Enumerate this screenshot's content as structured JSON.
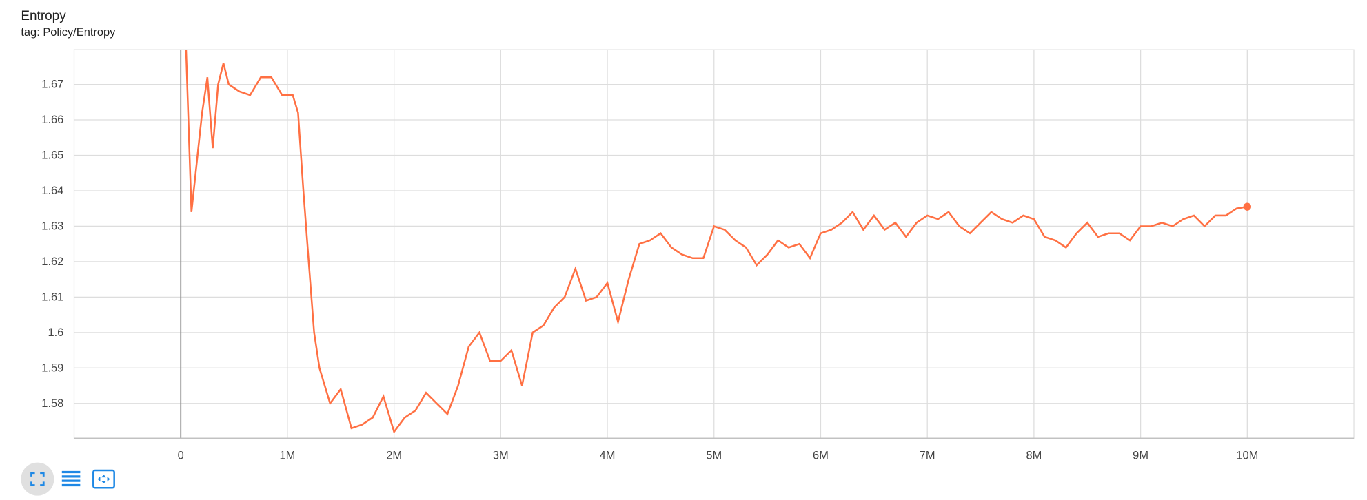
{
  "chart_data": {
    "type": "line",
    "title": "Entropy",
    "subtitle": "tag: Policy/Entropy",
    "x": [
      50000,
      100000,
      200000,
      250000,
      300000,
      350000,
      400000,
      450000,
      550000,
      650000,
      750000,
      850000,
      950000,
      1050000,
      1100000,
      1150000,
      1200000,
      1250000,
      1300000,
      1400000,
      1500000,
      1600000,
      1700000,
      1800000,
      1900000,
      2000000,
      2100000,
      2200000,
      2300000,
      2400000,
      2500000,
      2600000,
      2700000,
      2800000,
      2900000,
      3000000,
      3100000,
      3200000,
      3300000,
      3400000,
      3500000,
      3600000,
      3700000,
      3800000,
      3900000,
      4000000,
      4100000,
      4200000,
      4300000,
      4400000,
      4500000,
      4600000,
      4700000,
      4800000,
      4900000,
      5000000,
      5100000,
      5200000,
      5300000,
      5400000,
      5500000,
      5600000,
      5700000,
      5800000,
      5900000,
      6000000,
      6100000,
      6200000,
      6300000,
      6400000,
      6500000,
      6600000,
      6700000,
      6800000,
      6900000,
      7000000,
      7100000,
      7200000,
      7300000,
      7400000,
      7500000,
      7600000,
      7700000,
      7800000,
      7900000,
      8000000,
      8100000,
      8200000,
      8300000,
      8400000,
      8500000,
      8600000,
      8700000,
      8800000,
      8900000,
      9000000,
      9100000,
      9200000,
      9300000,
      9400000,
      9500000,
      9600000,
      9700000,
      9800000,
      9900000,
      10000000
    ],
    "series": [
      {
        "name": "Policy/Entropy",
        "color": "#ff7043",
        "values": [
          1.68,
          1.634,
          1.662,
          1.672,
          1.652,
          1.67,
          1.676,
          1.67,
          1.668,
          1.667,
          1.672,
          1.672,
          1.667,
          1.667,
          1.662,
          1.64,
          1.62,
          1.6,
          1.59,
          1.58,
          1.584,
          1.573,
          1.574,
          1.576,
          1.582,
          1.572,
          1.576,
          1.578,
          1.583,
          1.58,
          1.577,
          1.585,
          1.596,
          1.6,
          1.592,
          1.592,
          1.595,
          1.585,
          1.6,
          1.602,
          1.607,
          1.61,
          1.618,
          1.609,
          1.61,
          1.614,
          1.603,
          1.615,
          1.625,
          1.626,
          1.628,
          1.624,
          1.622,
          1.621,
          1.621,
          1.63,
          1.629,
          1.626,
          1.624,
          1.619,
          1.622,
          1.626,
          1.624,
          1.625,
          1.621,
          1.628,
          1.629,
          1.631,
          1.634,
          1.629,
          1.633,
          1.629,
          1.631,
          1.627,
          1.631,
          1.633,
          1.632,
          1.634,
          1.63,
          1.628,
          1.631,
          1.634,
          1.632,
          1.631,
          1.633,
          1.632,
          1.627,
          1.626,
          1.624,
          1.628,
          1.631,
          1.627,
          1.628,
          1.628,
          1.626,
          1.63,
          1.63,
          1.631,
          1.63,
          1.632,
          1.633,
          1.63,
          1.633,
          1.633,
          1.635,
          1.6355
        ]
      }
    ],
    "xlim": [
      -1000000,
      11000000
    ],
    "xticks": [
      0,
      {
        "value": 1000000,
        "label": "1M"
      },
      {
        "value": 2000000,
        "label": "2M"
      },
      {
        "value": 3000000,
        "label": "3M"
      },
      {
        "value": 4000000,
        "label": "4M"
      },
      {
        "value": 5000000,
        "label": "5M"
      },
      {
        "value": 6000000,
        "label": "6M"
      },
      {
        "value": 7000000,
        "label": "7M"
      },
      {
        "value": 8000000,
        "label": "8M"
      },
      {
        "value": 9000000,
        "label": "9M"
      },
      {
        "value": 10000000,
        "label": "10M"
      }
    ],
    "ylim": [
      1.5702,
      1.6798
    ],
    "yticks": [
      1.58,
      1.59,
      1.6,
      1.61,
      1.62,
      1.63,
      1.64,
      1.65,
      1.66,
      1.67
    ],
    "grid": true
  }
}
